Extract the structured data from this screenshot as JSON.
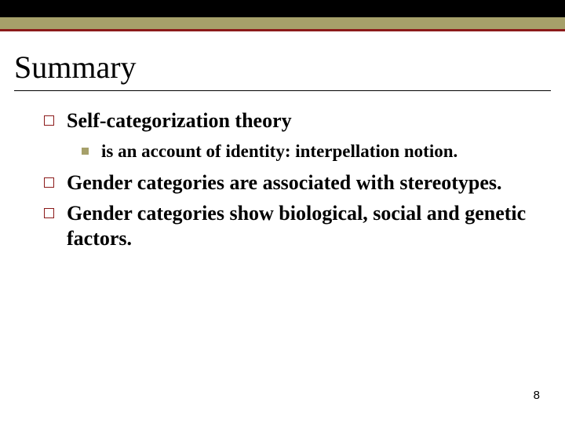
{
  "colors": {
    "top_bar": "#000000",
    "accent_bar": "#a6a06a",
    "accent_underline": "#8b1a1a",
    "title_underline": "#000000",
    "bullet_border": "#8b1a1a",
    "sub_bullet_fill": "#a6a06a",
    "text": "#000000",
    "background": "#ffffff"
  },
  "typography": {
    "title_fontsize": 40,
    "bullet_fontsize": 26,
    "sub_bullet_fontsize": 23,
    "page_number_fontsize": 15,
    "font_family": "Times New Roman"
  },
  "title": "Summary",
  "bullets": [
    {
      "text": "Self-categorization theory",
      "sub": [
        {
          "text": "is an account of identity: interpellation notion."
        }
      ]
    },
    {
      "text": "Gender categories are associated with stereotypes.",
      "sub": []
    },
    {
      "text": "Gender categories show biological, social and genetic factors.",
      "sub": []
    }
  ],
  "page_number": "8"
}
